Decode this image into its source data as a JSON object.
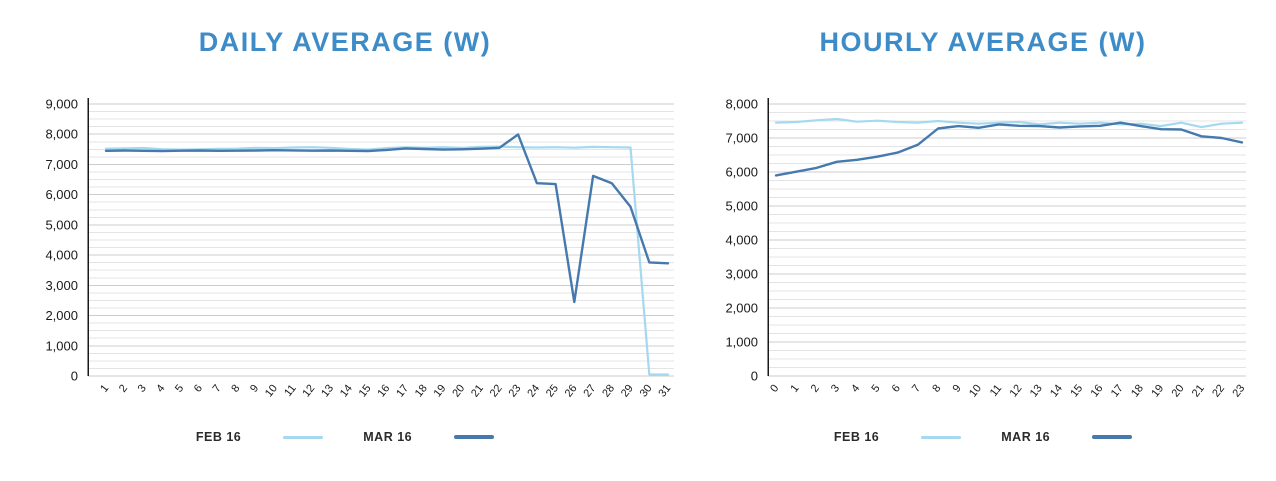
{
  "styles": {
    "title_color": "#3e8cc7",
    "feb_series_color": "#a4d9ef",
    "mar_series_color": "#4679ae",
    "gridline_minor_color": "#e4e4e4",
    "gridline_major_color": "#cccccc",
    "axis_color": "#1a1a1a"
  },
  "chart_data": [
    {
      "type": "line",
      "title": "DAILY AVERAGE (W)",
      "xlabel": "",
      "ylabel": "",
      "categories": [
        "1",
        "2",
        "3",
        "4",
        "5",
        "6",
        "7",
        "8",
        "9",
        "10",
        "11",
        "12",
        "13",
        "14",
        "15",
        "16",
        "17",
        "18",
        "19",
        "20",
        "21",
        "22",
        "23",
        "24",
        "25",
        "26",
        "27",
        "28",
        "29",
        "30",
        "31"
      ],
      "series": [
        {
          "name": "FEB 16",
          "color": "#a4d9ef",
          "values": [
            7520,
            7530,
            7545,
            7505,
            7490,
            7500,
            7515,
            7520,
            7550,
            7540,
            7560,
            7570,
            7550,
            7510,
            7490,
            7540,
            7570,
            7555,
            7570,
            7550,
            7580,
            7590,
            7570,
            7560,
            7570,
            7555,
            7580,
            7570,
            7560,
            50,
            50
          ]
        },
        {
          "name": "MAR 16",
          "color": "#4679ae",
          "values": [
            7450,
            7460,
            7450,
            7440,
            7455,
            7460,
            7450,
            7455,
            7460,
            7470,
            7465,
            7455,
            7460,
            7450,
            7445,
            7480,
            7530,
            7510,
            7490,
            7500,
            7520,
            7550,
            7990,
            6380,
            6350,
            2450,
            6620,
            6380,
            5600,
            3760,
            3730
          ]
        }
      ],
      "ylim": [
        0,
        9000
      ],
      "ytick_step": 1000,
      "grid_minor_step": 250,
      "grid": "on",
      "legend_position": "bottom"
    },
    {
      "type": "line",
      "title": "HOURLY AVERAGE (W)",
      "xlabel": "",
      "ylabel": "",
      "categories": [
        "0",
        "1",
        "2",
        "3",
        "4",
        "5",
        "6",
        "7",
        "8",
        "9",
        "10",
        "11",
        "12",
        "13",
        "14",
        "15",
        "16",
        "17",
        "18",
        "19",
        "20",
        "21",
        "22",
        "23"
      ],
      "series": [
        {
          "name": "FEB 16",
          "color": "#a4d9ef",
          "values": [
            7450,
            7470,
            7520,
            7560,
            7480,
            7510,
            7470,
            7450,
            7500,
            7450,
            7420,
            7450,
            7470,
            7400,
            7450,
            7420,
            7450,
            7400,
            7420,
            7350,
            7450,
            7320,
            7420,
            7450
          ]
        },
        {
          "name": "MAR 16",
          "color": "#4679ae",
          "values": [
            5900,
            6010,
            6120,
            6300,
            6360,
            6450,
            6570,
            6800,
            7280,
            7350,
            7300,
            7400,
            7360,
            7350,
            7310,
            7340,
            7360,
            7450,
            7350,
            7260,
            7250,
            7050,
            7000,
            6870
          ]
        }
      ],
      "ylim": [
        0,
        8000
      ],
      "ytick_step": 1000,
      "grid_minor_step": 250,
      "grid": "on",
      "legend_position": "bottom"
    }
  ]
}
